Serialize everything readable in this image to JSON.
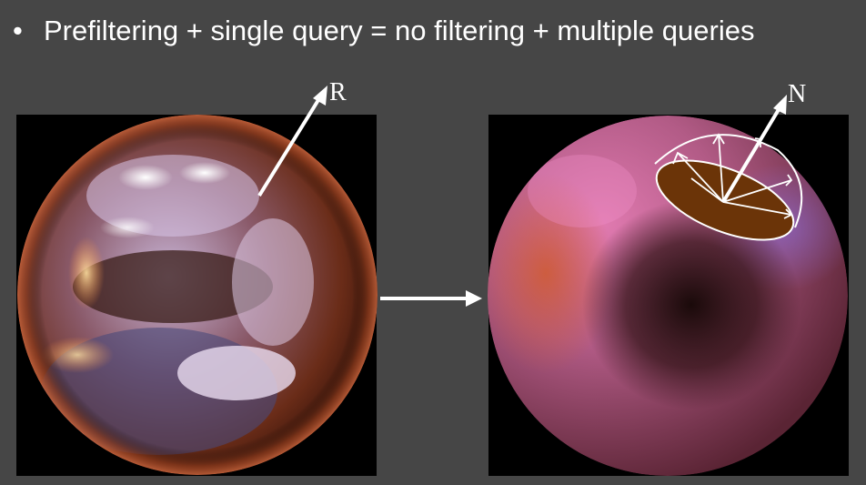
{
  "slide": {
    "bullet_symbol": "•",
    "bullet_text": "Prefiltering + single query = no filtering + multiple queries"
  },
  "diagram": {
    "left_panel": {
      "name": "mirror-sphere-environment-map",
      "vector_label": "R"
    },
    "right_panel": {
      "name": "prefiltered-diffuse-sphere",
      "vector_label": "N"
    },
    "colors": {
      "background": "#464646",
      "arrow": "#ffffff",
      "hemisphere_base": "#6b3408"
    }
  }
}
